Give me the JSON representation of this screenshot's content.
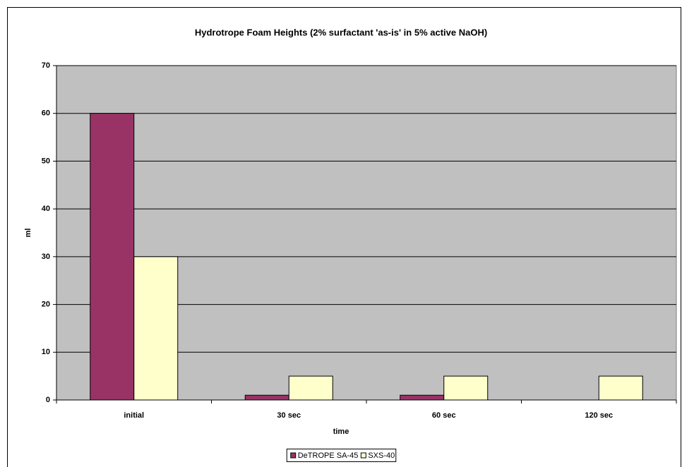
{
  "chart_data": {
    "type": "bar",
    "title": "Hydrotrope Foam Heights (2% surfactant 'as-is' in 5% active NaOH)",
    "x_label": "time",
    "y_label": "ml",
    "categories": [
      "initial",
      "30 sec",
      "60 sec",
      "120 sec"
    ],
    "series": [
      {
        "name": "DeTROPE SA-45",
        "color": "#993366",
        "values": [
          60,
          1,
          1,
          0
        ]
      },
      {
        "name": "SXS-40",
        "color": "#FFFFCC",
        "values": [
          30,
          5,
          5,
          5
        ]
      }
    ],
    "ylim": [
      0,
      70
    ],
    "yticks": [
      0,
      10,
      20,
      30,
      40,
      50,
      60,
      70
    ],
    "grid": true,
    "plot_background": "#C0C0C0",
    "legend": "bottom"
  }
}
